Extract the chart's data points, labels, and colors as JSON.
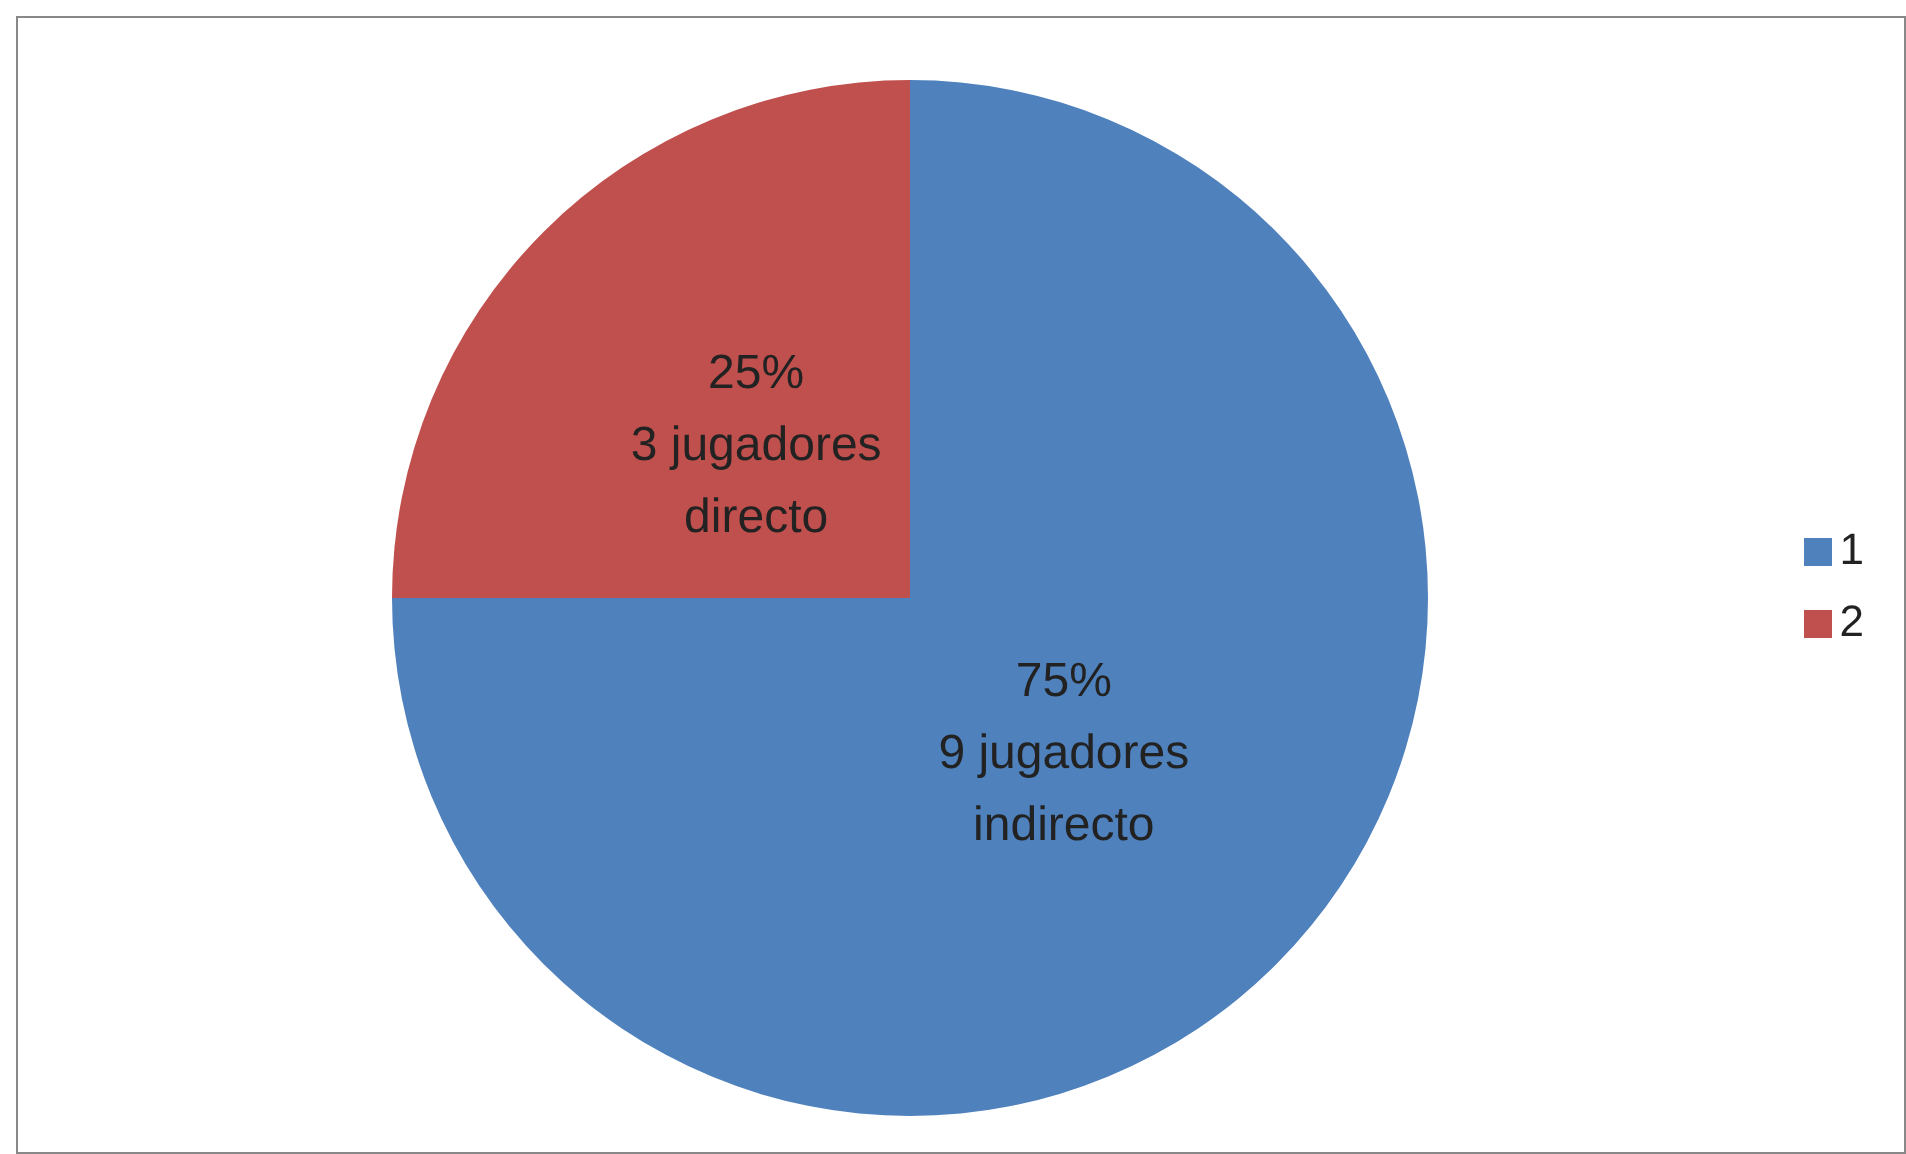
{
  "chart_data": {
    "type": "pie",
    "categories": [
      "1",
      "2"
    ],
    "values": [
      75,
      25
    ],
    "colors": [
      "#4f81bd",
      "#c0504d"
    ],
    "value_labels": [
      "75%\n9 jugadores\nindirecto",
      "25%\n3 jugadores\ndirecto"
    ],
    "legend": "right"
  }
}
